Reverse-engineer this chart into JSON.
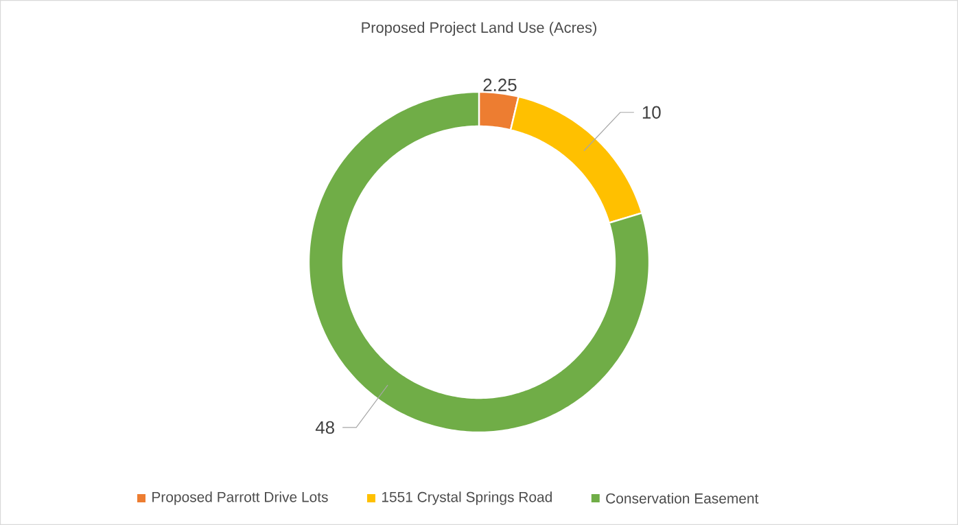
{
  "chart_data": {
    "type": "donut",
    "title": "Proposed Project Land Use (Acres)",
    "categories": [
      "Proposed Parrott Drive Lots",
      "1551 Crystal Springs Road",
      "Conservation Easement"
    ],
    "values": [
      2.25,
      10,
      48
    ],
    "colors": [
      "#ed7d31",
      "#ffc000",
      "#70ad47"
    ],
    "data_labels": true,
    "legend": "bottom"
  }
}
